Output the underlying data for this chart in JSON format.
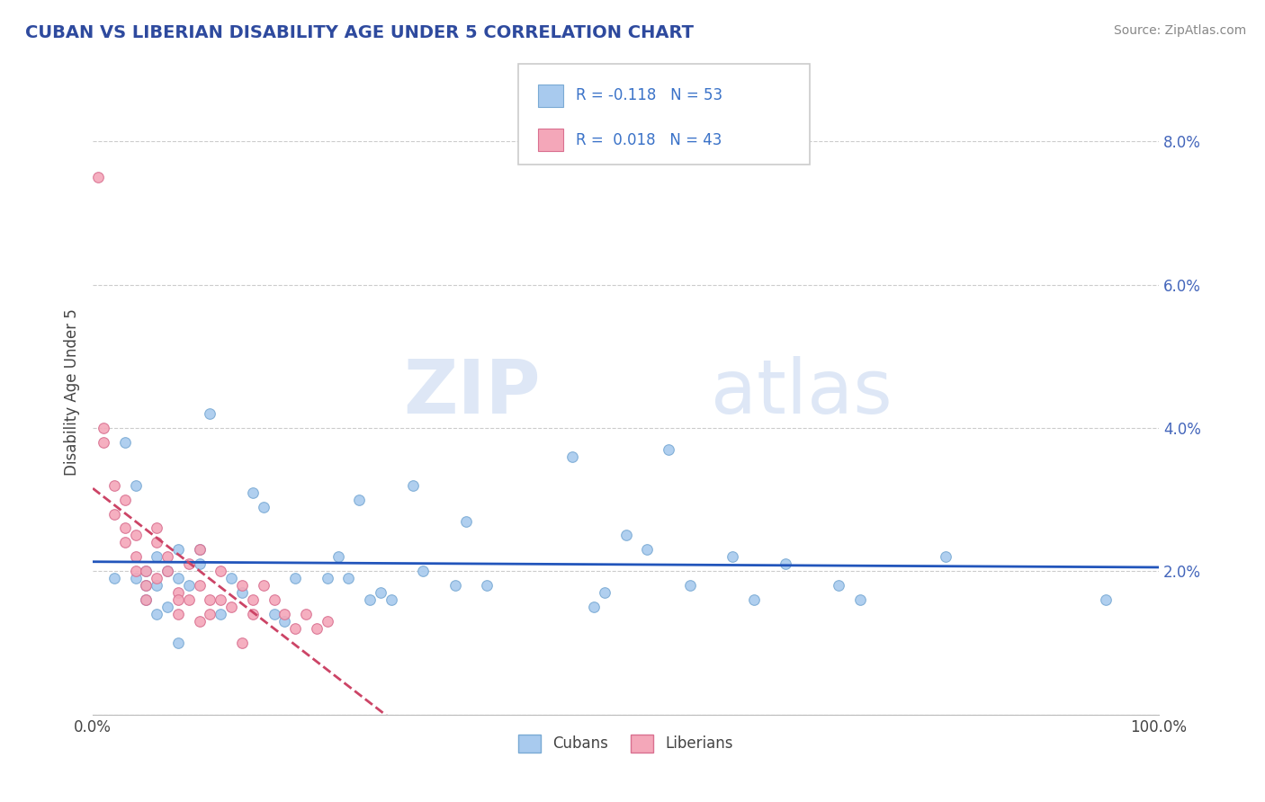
{
  "title": "CUBAN VS LIBERIAN DISABILITY AGE UNDER 5 CORRELATION CHART",
  "source": "Source: ZipAtlas.com",
  "ylabel": "Disability Age Under 5",
  "title_color": "#2E4A9E",
  "source_color": "#888888",
  "background_color": "#ffffff",
  "plot_bg_color": "#ffffff",
  "grid_color": "#cccccc",
  "xmin": 0.0,
  "xmax": 1.0,
  "ymin": 0.0,
  "ymax": 0.09,
  "cubans_color": "#A8CAEE",
  "liberians_color": "#F4A7B9",
  "cubans_edge_color": "#7AAAD4",
  "liberians_edge_color": "#D97090",
  "trend_cubans_color": "#2255BB",
  "trend_liberians_color": "#CC4466",
  "marker_size": 70,
  "legend_text_color": "#3A72C8",
  "watermark_zip": "ZIP",
  "watermark_atlas": "atlas",
  "cubans_x": [
    0.02,
    0.03,
    0.04,
    0.04,
    0.05,
    0.05,
    0.05,
    0.06,
    0.06,
    0.06,
    0.07,
    0.07,
    0.08,
    0.08,
    0.08,
    0.09,
    0.1,
    0.1,
    0.11,
    0.12,
    0.13,
    0.14,
    0.15,
    0.16,
    0.17,
    0.18,
    0.19,
    0.22,
    0.23,
    0.24,
    0.25,
    0.26,
    0.27,
    0.28,
    0.3,
    0.31,
    0.34,
    0.35,
    0.37,
    0.45,
    0.47,
    0.48,
    0.5,
    0.52,
    0.54,
    0.56,
    0.6,
    0.62,
    0.65,
    0.7,
    0.72,
    0.8,
    0.95
  ],
  "cubans_y": [
    0.019,
    0.038,
    0.032,
    0.019,
    0.02,
    0.018,
    0.016,
    0.022,
    0.018,
    0.014,
    0.02,
    0.015,
    0.023,
    0.019,
    0.01,
    0.018,
    0.023,
    0.021,
    0.042,
    0.014,
    0.019,
    0.017,
    0.031,
    0.029,
    0.014,
    0.013,
    0.019,
    0.019,
    0.022,
    0.019,
    0.03,
    0.016,
    0.017,
    0.016,
    0.032,
    0.02,
    0.018,
    0.027,
    0.018,
    0.036,
    0.015,
    0.017,
    0.025,
    0.023,
    0.037,
    0.018,
    0.022,
    0.016,
    0.021,
    0.018,
    0.016,
    0.022,
    0.016
  ],
  "liberians_x": [
    0.005,
    0.01,
    0.01,
    0.02,
    0.02,
    0.03,
    0.03,
    0.03,
    0.04,
    0.04,
    0.04,
    0.05,
    0.05,
    0.05,
    0.06,
    0.06,
    0.06,
    0.07,
    0.07,
    0.08,
    0.08,
    0.08,
    0.09,
    0.09,
    0.1,
    0.1,
    0.1,
    0.11,
    0.11,
    0.12,
    0.12,
    0.13,
    0.14,
    0.14,
    0.15,
    0.15,
    0.16,
    0.17,
    0.18,
    0.19,
    0.2,
    0.21,
    0.22
  ],
  "liberians_y": [
    0.075,
    0.04,
    0.038,
    0.032,
    0.028,
    0.026,
    0.024,
    0.03,
    0.025,
    0.022,
    0.02,
    0.02,
    0.018,
    0.016,
    0.026,
    0.024,
    0.019,
    0.022,
    0.02,
    0.017,
    0.016,
    0.014,
    0.021,
    0.016,
    0.023,
    0.018,
    0.013,
    0.016,
    0.014,
    0.02,
    0.016,
    0.015,
    0.018,
    0.01,
    0.016,
    0.014,
    0.018,
    0.016,
    0.014,
    0.012,
    0.014,
    0.012,
    0.013
  ]
}
